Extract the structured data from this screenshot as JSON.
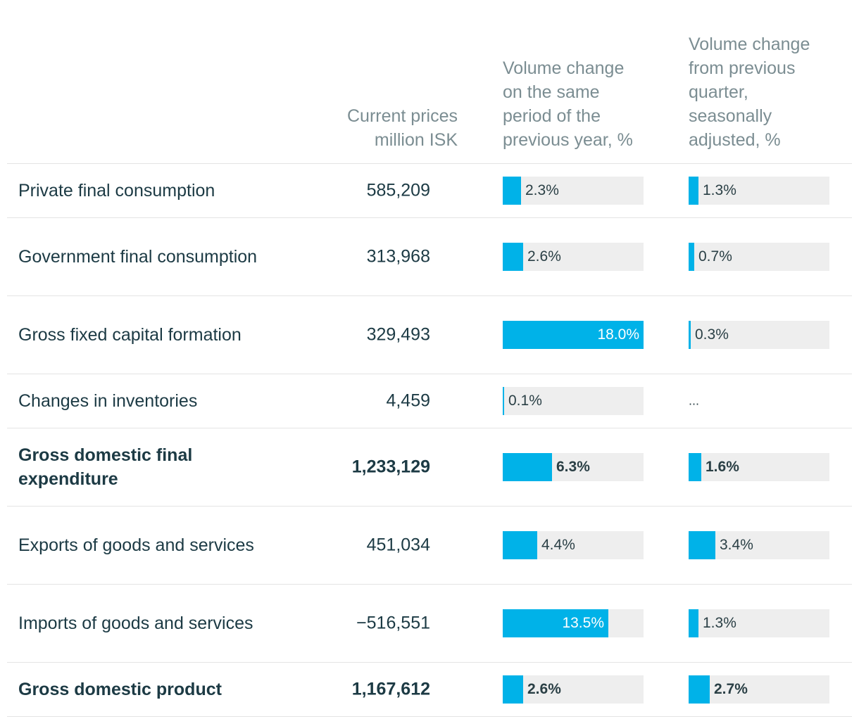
{
  "chart_data": {
    "type": "table",
    "headers": {
      "label": "",
      "current": [
        "Current prices",
        "million ISK"
      ],
      "yoy": [
        "Volume change",
        "on the same",
        "period of the",
        "previous year, %"
      ],
      "qoq": [
        "Volume change",
        "from previous",
        "quarter,",
        "seasonally",
        "adjusted, %"
      ]
    },
    "bar_scale_max": 18.0,
    "rows": [
      {
        "label": "Private final consumption",
        "current": "585,209",
        "yoy": 2.3,
        "yoy_label": "2.3%",
        "qoq": 1.3,
        "qoq_label": "1.3%",
        "bold": false
      },
      {
        "label": "Government final consumption",
        "current": "313,968",
        "yoy": 2.6,
        "yoy_label": "2.6%",
        "qoq": 0.7,
        "qoq_label": "0.7%",
        "bold": false
      },
      {
        "label": "Gross fixed capital formation",
        "current": "329,493",
        "yoy": 18.0,
        "yoy_label": "18.0%",
        "qoq": 0.3,
        "qoq_label": "0.3%",
        "bold": false
      },
      {
        "label": "Changes in inventories",
        "current": "4,459",
        "yoy": 0.1,
        "yoy_label": "0.1%",
        "qoq": null,
        "qoq_label": "...",
        "bold": false
      },
      {
        "label": "Gross domestic final expenditure",
        "current": "1,233,129",
        "yoy": 6.3,
        "yoy_label": "6.3%",
        "qoq": 1.6,
        "qoq_label": "1.6%",
        "bold": true
      },
      {
        "label": "Exports of goods and services",
        "current": "451,034",
        "yoy": 4.4,
        "yoy_label": "4.4%",
        "qoq": 3.4,
        "qoq_label": "3.4%",
        "bold": false
      },
      {
        "label": "Imports of goods and services",
        "current": "−516,551",
        "yoy": 13.5,
        "yoy_label": "13.5%",
        "qoq": 1.3,
        "qoq_label": "1.3%",
        "bold": false
      },
      {
        "label": "Gross domestic product",
        "current": "1,167,612",
        "yoy": 2.6,
        "yoy_label": "2.6%",
        "qoq": 2.7,
        "qoq_label": "2.7%",
        "bold": true
      }
    ],
    "colors": {
      "bar": "#00b2e8",
      "track": "#eeeeee"
    }
  }
}
